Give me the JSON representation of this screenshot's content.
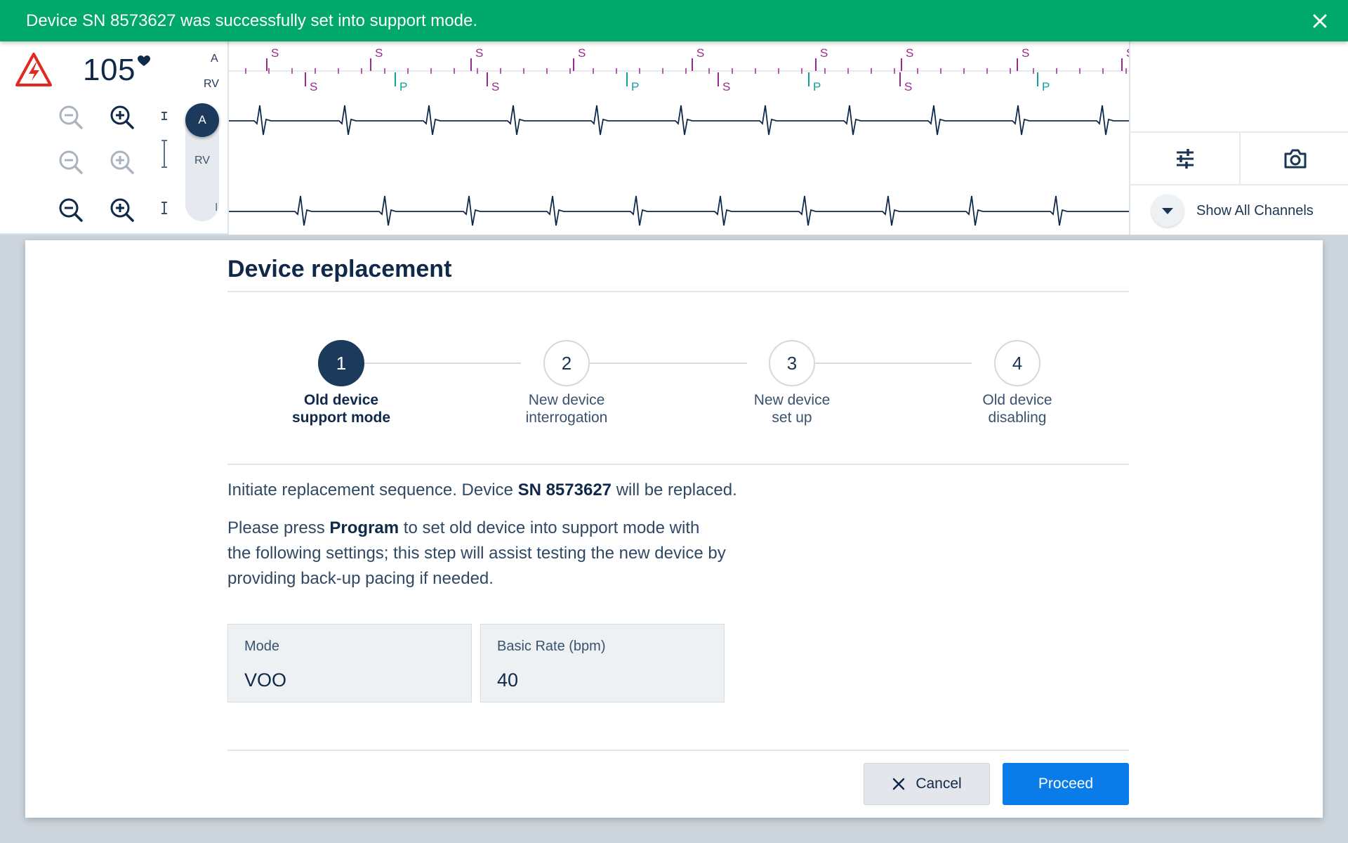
{
  "notification": {
    "message": "Device SN 8573627 was successfully set into support mode.",
    "close_icon": "close-icon",
    "color": "#00a86b"
  },
  "vitals": {
    "alert_icon": "shock-warning-icon",
    "heart_rate": "105",
    "heart_icon": "heart-icon"
  },
  "channels": {
    "marker_labels": [
      "A",
      "RV"
    ],
    "lead_label": "I",
    "toggle_a": "A",
    "toggle_rv": "RV"
  },
  "markers": {
    "top_row": [
      "S",
      "S",
      "S",
      "S",
      "S",
      "S",
      "S",
      "S",
      "S"
    ],
    "bottom_row": [
      "S",
      "P",
      "S",
      "P",
      "S",
      "P",
      "S",
      "P"
    ],
    "sense_color": "#9c2a8e",
    "pace_color": "#14a09a"
  },
  "right_panel": {
    "settings_icon": "sliders-icon",
    "camera_icon": "camera-icon",
    "show_all_label": "Show All Channels"
  },
  "dialog": {
    "title": "Device replacement",
    "steps": [
      {
        "number": "1",
        "line1": "Old device",
        "line2": "support mode",
        "active": true
      },
      {
        "number": "2",
        "line1": "New device",
        "line2": "interrogation",
        "active": false
      },
      {
        "number": "3",
        "line1": "New device",
        "line2": "set up",
        "active": false
      },
      {
        "number": "4",
        "line1": "Old device",
        "line2": "disabling",
        "active": false
      }
    ],
    "intro_prefix": "Initiate replacement sequence. Device ",
    "intro_serial": "SN 8573627",
    "intro_suffix": " will be replaced.",
    "instr_prefix": "Please press ",
    "instr_bold": "Program",
    "instr_line1_suffix": " to set old device into support mode with",
    "instr_line2": "the following settings; this step will assist testing the new device by",
    "instr_line3": "providing back-up pacing if needed.",
    "fields": [
      {
        "label": "Mode",
        "value": "VOO"
      },
      {
        "label": "Basic Rate (bpm)",
        "value": "40"
      }
    ],
    "cancel_label": "Cancel",
    "proceed_label": "Proceed",
    "primary_color": "#0a7ce9"
  }
}
